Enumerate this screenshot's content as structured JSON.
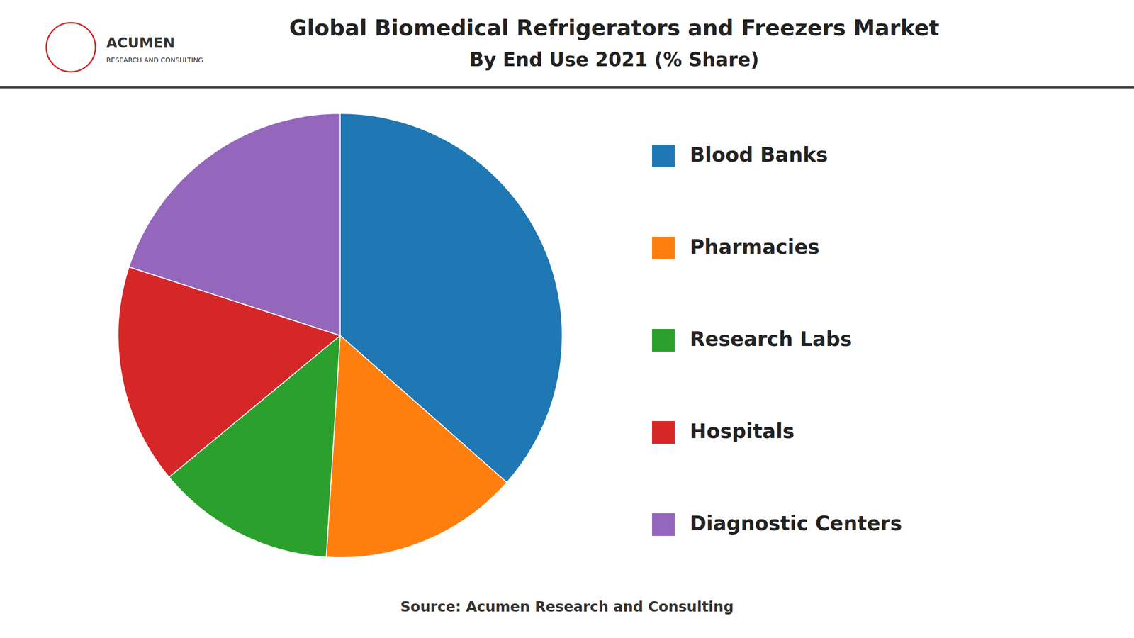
{
  "chart_data": {
    "type": "pie",
    "title": "Global Biomedical Refrigerators and Freezers Market",
    "subtitle": "By End Use  2021 (% Share)",
    "annotations": [
      "ACUMEN",
      "RESEARCH AND CONSULTING",
      "Source: Acumen Research and Consulting"
    ],
    "categories": [
      "Blood Banks",
      "Pharmacies",
      "Research Labs",
      "Hospitals",
      "Diagnostic Centers"
    ],
    "values": [
      36.5,
      14.5,
      13.0,
      16.0,
      20.0
    ],
    "legend": "right"
  }
}
